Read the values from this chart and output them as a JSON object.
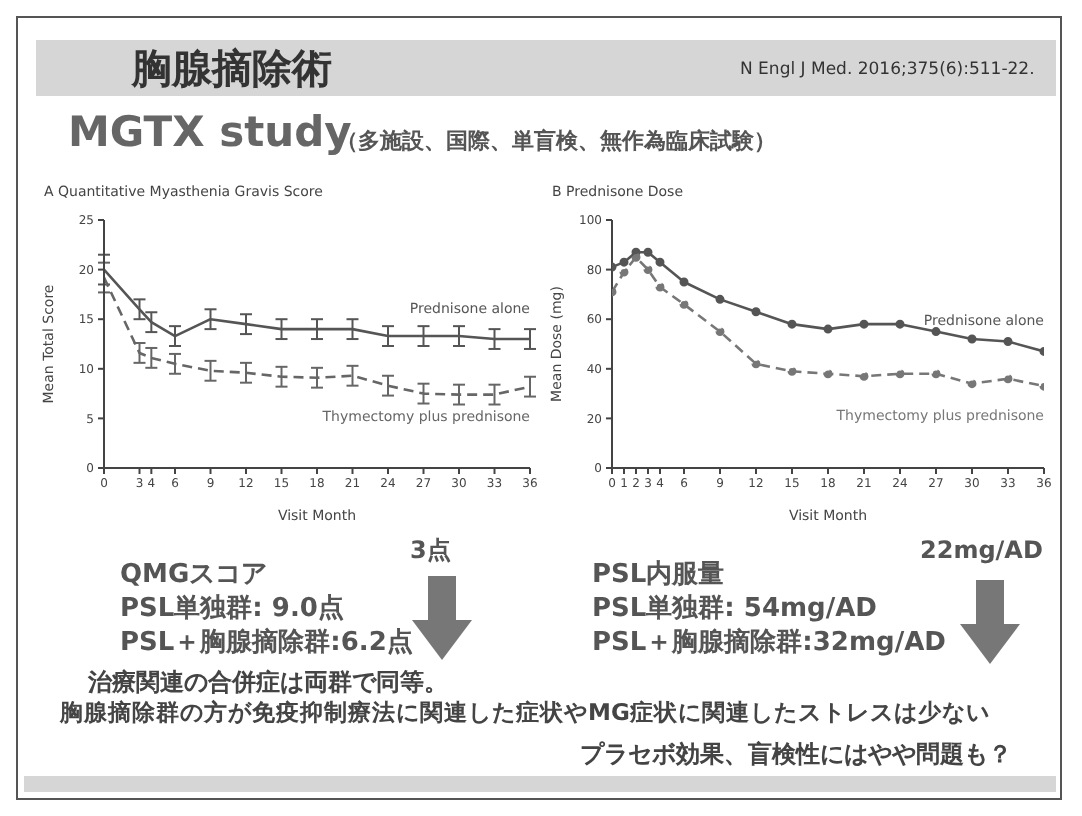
{
  "chart_data": [
    {
      "type": "line",
      "title": "A  Quantitative Myasthenia Gravis Score",
      "xlabel": "Visit Month",
      "ylabel": "Mean Total Score",
      "x": [
        0,
        3,
        4,
        6,
        9,
        12,
        15,
        18,
        21,
        24,
        27,
        30,
        33,
        36
      ],
      "xlim": [
        0,
        36
      ],
      "xticks": [
        0,
        3,
        4,
        6,
        9,
        12,
        15,
        18,
        21,
        24,
        27,
        30,
        33,
        36
      ],
      "ylim": [
        0,
        25
      ],
      "yticks": [
        0,
        5,
        10,
        15,
        20,
        25
      ],
      "marker": "none",
      "series": [
        {
          "name": "Prednisone alone",
          "color": "#555555",
          "line_style": "solid",
          "values": [
            20,
            16,
            14.7,
            13.3,
            15,
            14.5,
            14,
            14,
            14,
            13.3,
            13.3,
            13.3,
            13,
            13
          ],
          "errors": [
            1.5,
            1,
            1,
            1,
            1,
            1,
            1,
            1,
            1,
            1,
            1,
            1,
            1,
            1
          ]
        },
        {
          "name": "Thymectomy plus prednisone",
          "color": "#666666",
          "line_style": "dashed",
          "values": [
            19.2,
            11.6,
            11.1,
            10.5,
            9.8,
            9.6,
            9.2,
            9.1,
            9.3,
            8.3,
            7.5,
            7.4,
            7.4,
            8.2
          ],
          "errors": [
            1.5,
            1,
            1,
            1,
            1,
            1,
            1,
            1,
            1,
            1,
            1,
            1,
            1,
            1
          ]
        }
      ],
      "annotations": [
        "胸腺摘除術",
        "N Engl J Med. 2016;375(6):511-22.",
        "MGTX study",
        "（多施設、国際、単盲検、無作為臨床試験）",
        "QMGスコア",
        "PSL単独群: 9.0点",
        "PSL＋胸腺摘除群:6.2点",
        "3点",
        "治療関連の合併症は両群で同等。",
        "胸腺摘除群の方が免疫抑制療法に関連した症状やMG症状に関連したストレスは少ない",
        "プラセボ効果、盲検性にはやや問題も？"
      ]
    },
    {
      "type": "line",
      "title": "B  Prednisone Dose",
      "xlabel": "Visit Month",
      "ylabel": "Mean Dose (mg)",
      "x": [
        0,
        1,
        2,
        3,
        4,
        6,
        9,
        12,
        15,
        18,
        21,
        24,
        27,
        30,
        33,
        36
      ],
      "xlim": [
        0,
        36
      ],
      "xticks": [
        0,
        1,
        2,
        3,
        4,
        6,
        9,
        12,
        15,
        18,
        21,
        24,
        27,
        30,
        33,
        36
      ],
      "ylim": [
        0,
        100
      ],
      "yticks": [
        0,
        20,
        40,
        60,
        80,
        100
      ],
      "marker": "circle",
      "series": [
        {
          "name": "Prednisone alone",
          "color": "#555555",
          "line_style": "solid",
          "values": [
            81,
            83,
            87,
            87,
            83,
            75,
            68,
            63,
            58,
            56,
            58,
            58,
            55,
            52,
            51,
            47
          ]
        },
        {
          "name": "Thymectomy plus prednisone",
          "color": "#777777",
          "line_style": "dashed",
          "values": [
            71,
            79,
            85,
            80,
            73,
            66,
            55,
            42,
            39,
            38,
            37,
            38,
            38,
            34,
            36,
            33
          ]
        }
      ],
      "annotations": [
        "PSL内服量",
        "PSL単独群: 54mg/AD",
        "PSL＋胸腺摘除群:32mg/AD",
        "22mg/AD"
      ]
    }
  ]
}
